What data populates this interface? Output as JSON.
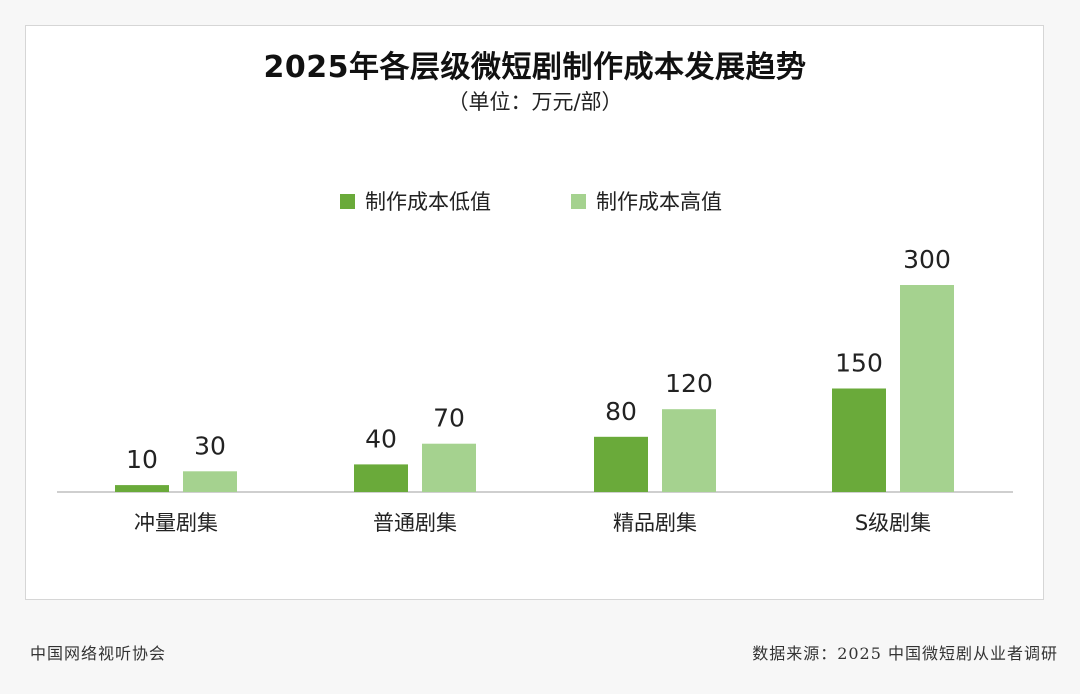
{
  "header": {
    "title": "2025年各层级微短剧制作成本发展趋势",
    "subtitle": "（单位：万元/部）"
  },
  "legend": [
    {
      "label": "制作成本低值",
      "color": "#6aaa3a"
    },
    {
      "label": "制作成本高值",
      "color": "#a5d28f"
    }
  ],
  "footer": {
    "left": "中国网络视听协会",
    "right": "数据来源：2025 中国微短剧从业者调研"
  },
  "chart_data": {
    "type": "bar",
    "title": "2025年各层级微短剧制作成本发展趋势",
    "subtitle": "（单位：万元/部）",
    "categories": [
      "冲量剧集",
      "普通剧集",
      "精品剧集",
      "S级剧集"
    ],
    "series": [
      {
        "name": "制作成本低值",
        "values": [
          10,
          40,
          80,
          150
        ],
        "color": "#6aaa3a"
      },
      {
        "name": "制作成本高值",
        "values": [
          30,
          70,
          120,
          300
        ],
        "color": "#a5d28f"
      }
    ],
    "ylim": [
      0,
      300
    ],
    "grid": false,
    "legend_position": "top"
  }
}
